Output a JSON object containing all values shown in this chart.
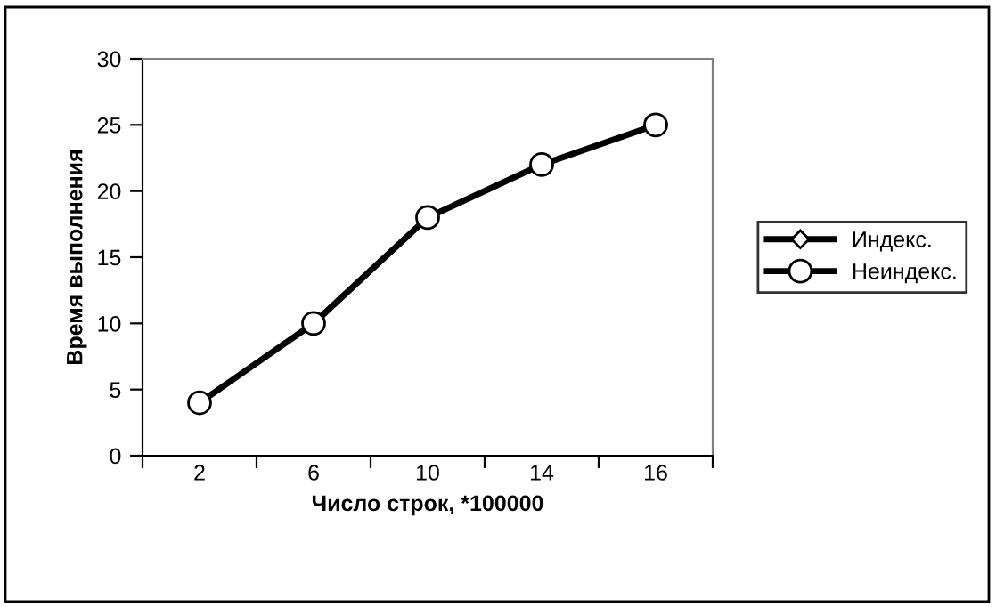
{
  "chart_data": {
    "type": "line",
    "xlabel": "Число строк, *100000",
    "ylabel": "Время выполнения",
    "categories": [
      "2",
      "6",
      "10",
      "14",
      "16"
    ],
    "series": [
      {
        "name": "Индекс.",
        "color": "#000000",
        "marker": "diamond",
        "values": [
          null,
          null,
          null,
          null,
          null
        ]
      },
      {
        "name": "Неиндекс.",
        "color": "#000000",
        "marker": "circle",
        "values": [
          4,
          10,
          18,
          22,
          25
        ]
      }
    ],
    "ylim": [
      0,
      30
    ],
    "yticks": [
      0,
      5,
      10,
      15,
      20,
      25,
      30
    ],
    "grid": false,
    "legend": "right",
    "line_style": "solid"
  }
}
